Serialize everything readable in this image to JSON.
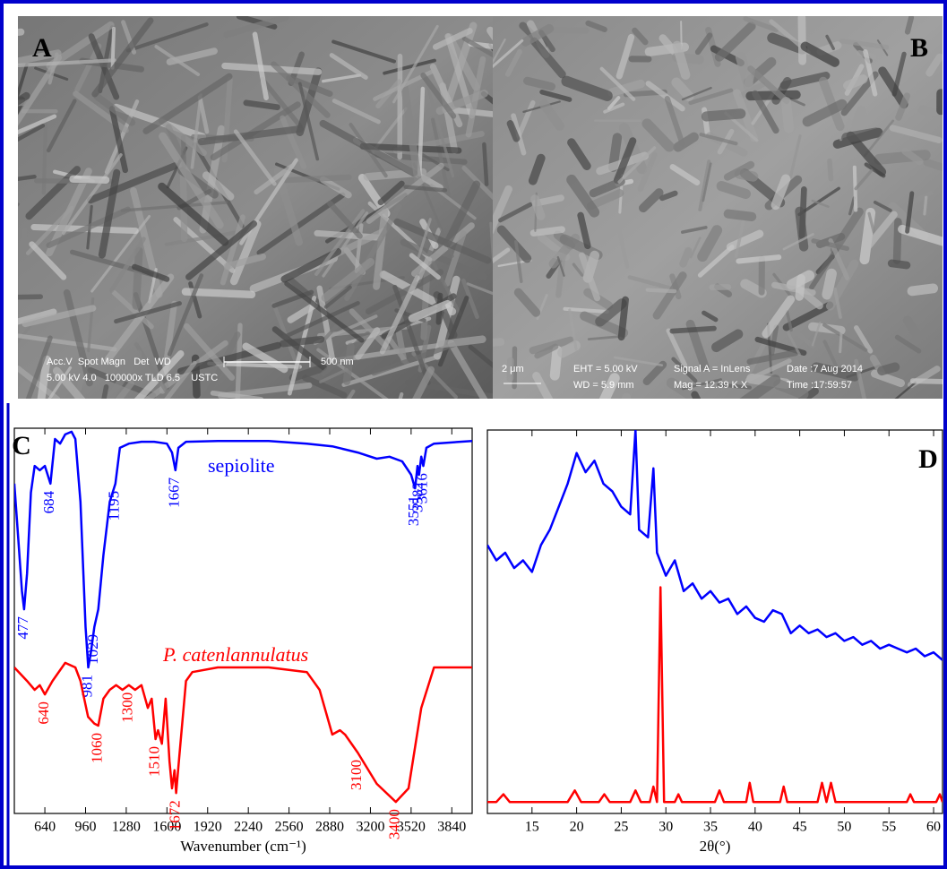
{
  "panels": [
    {
      "label": "A",
      "annotations": [
        "Acc.V  Spot Magn   Det  WD",
        "500 nm",
        "5.00 kV 4.0   100000x TLD 6.5    USTC"
      ]
    },
    {
      "label": "B",
      "annotations": [
        "2 μm",
        "EHT = 5.00 kV",
        "WD = 5.9 mm",
        "Signal A = InLens",
        "Mag = 12.39 K X",
        "Date :7 Aug 2014",
        "Time :17:59:57"
      ]
    }
  ],
  "chart_data": [
    {
      "type": "line",
      "panel_label": "C",
      "xlabel": "Wavenumber (cm⁻¹)",
      "xlim": [
        400,
        4000
      ],
      "xticks": [
        640,
        960,
        1280,
        1600,
        1920,
        2240,
        2560,
        2880,
        3200,
        3520,
        3840
      ],
      "ylim": [
        0,
        100
      ],
      "series": [
        {
          "name": "sepiolite",
          "color": "#0000ff",
          "x": [
            400,
            430,
            460,
            477,
            500,
            530,
            560,
            600,
            640,
            684,
            720,
            760,
            800,
            850,
            880,
            920,
            960,
            981,
            1000,
            1029,
            1060,
            1100,
            1150,
            1195,
            1230,
            1300,
            1400,
            1500,
            1600,
            1640,
            1667,
            1690,
            1750,
            2000,
            2400,
            2700,
            2900,
            3100,
            3250,
            3350,
            3450,
            3520,
            3551,
            3570,
            3582,
            3600,
            3616,
            3640,
            3700,
            4000
          ],
          "values": [
            85.6,
            71.6,
            57.7,
            53.0,
            62.3,
            83.3,
            90.2,
            89.1,
            90.2,
            85.6,
            97.2,
            96.0,
            98.4,
            99.1,
            97.2,
            80.9,
            48.4,
            37.9,
            41.4,
            48.4,
            53.0,
            67.0,
            80.9,
            85.6,
            94.9,
            96.0,
            96.5,
            96.5,
            96.0,
            93.7,
            89.1,
            94.9,
            96.5,
            96.7,
            96.7,
            96.0,
            95.3,
            93.7,
            92.1,
            92.6,
            91.4,
            87.9,
            84.4,
            90.2,
            87.9,
            92.6,
            90.2,
            94.9,
            96.0,
            96.7
          ],
          "peaks": [
            477,
            684,
            981,
            1029,
            1195,
            1667,
            3551,
            3582,
            3616
          ]
        },
        {
          "name": "P. catenlannulatus",
          "color": "#ff0000",
          "x": [
            400,
            500,
            560,
            600,
            640,
            700,
            800,
            880,
            920,
            980,
            1030,
            1060,
            1100,
            1150,
            1200,
            1250,
            1300,
            1350,
            1400,
            1450,
            1480,
            1510,
            1530,
            1560,
            1590,
            1620,
            1640,
            1660,
            1672,
            1700,
            1750,
            1800,
            2000,
            2400,
            2700,
            2800,
            2900,
            2960,
            3000,
            3100,
            3250,
            3400,
            3500,
            3600,
            3700,
            3800,
            4000
          ],
          "values": [
            37.9,
            34.4,
            32.1,
            33.3,
            30.9,
            34.4,
            39.1,
            37.9,
            34.4,
            25.1,
            23.3,
            22.8,
            29.8,
            32.1,
            33.3,
            32.1,
            33.3,
            32.1,
            33.3,
            27.4,
            29.8,
            19.3,
            21.6,
            18.1,
            29.8,
            13.5,
            6.5,
            11.2,
            5.3,
            15.8,
            34.4,
            36.7,
            37.9,
            37.9,
            36.7,
            32.1,
            20.5,
            21.6,
            20.5,
            15.8,
            7.7,
            3.0,
            6.5,
            27.4,
            37.9,
            37.9,
            37.9
          ],
          "peaks": [
            640,
            1060,
            1300,
            1510,
            1672,
            3100,
            3400
          ]
        }
      ]
    },
    {
      "type": "line",
      "panel_label": "D",
      "xlabel": "2θ(°)",
      "xlim": [
        10,
        61
      ],
      "xticks": [
        15,
        20,
        25,
        30,
        35,
        40,
        45,
        50,
        55,
        60
      ],
      "ylim": [
        0,
        100
      ],
      "series": [
        {
          "color": "#0000ff",
          "x": [
            10,
            11,
            12,
            13,
            14,
            15,
            16,
            17,
            18,
            19,
            20,
            21,
            22,
            23,
            24,
            25,
            26,
            26.6,
            27,
            28,
            28.6,
            29,
            30,
            31,
            32,
            33,
            34,
            35,
            36,
            37,
            38,
            39,
            40,
            41,
            42,
            43,
            44,
            45,
            46,
            47,
            48,
            49,
            50,
            51,
            52,
            53,
            54,
            55,
            56,
            57,
            58,
            59,
            60,
            61
          ],
          "values": [
            70,
            66,
            68,
            64,
            66,
            63,
            70,
            74,
            80,
            86,
            94,
            89,
            92,
            86,
            84,
            80,
            78,
            100,
            74,
            72,
            90,
            68,
            62,
            66,
            58,
            60,
            56,
            58,
            55,
            56,
            52,
            54,
            51,
            50,
            53,
            52,
            47,
            49,
            47,
            48,
            46,
            47,
            45,
            46,
            44,
            45,
            43,
            44,
            43,
            42,
            43,
            41,
            42,
            40
          ]
        },
        {
          "color": "#ff0000",
          "x": [
            10,
            11,
            11.8,
            12.5,
            19,
            19.8,
            20.5,
            22.5,
            23.1,
            23.7,
            26,
            26.6,
            27.2,
            28.2,
            28.6,
            29,
            29.4,
            29.8,
            31,
            31.4,
            31.8,
            35.5,
            36,
            36.5,
            39,
            39.4,
            39.8,
            42.8,
            43.2,
            43.6,
            47,
            47.5,
            48,
            48.5,
            49,
            57,
            57.4,
            57.8,
            60.3,
            60.7,
            61
          ],
          "values": [
            3,
            3,
            5,
            3,
            3,
            6,
            3,
            3,
            5,
            3,
            3,
            6,
            3,
            3,
            7,
            3,
            59,
            3,
            3,
            5,
            3,
            3,
            6,
            3,
            3,
            8,
            3,
            3,
            7,
            3,
            3,
            8,
            3,
            8,
            3,
            3,
            5,
            3,
            3,
            5,
            3
          ]
        }
      ]
    }
  ]
}
